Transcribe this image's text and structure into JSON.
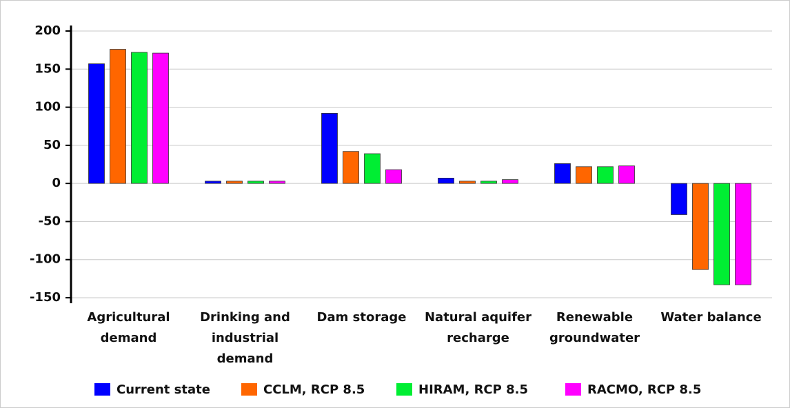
{
  "chart_data": {
    "type": "bar",
    "categories": [
      "Agricultural demand",
      "Drinking and industrial demand",
      "Dam storage",
      "Natural aquifer recharge",
      "Renewable groundwater",
      "Water balance"
    ],
    "series": [
      {
        "name": "Current state",
        "color": "#0000ff",
        "values": [
          157,
          3,
          92,
          7,
          26,
          -41
        ]
      },
      {
        "name": "CCLM, RCP 8.5",
        "color": "#ff6600",
        "values": [
          176,
          3,
          42,
          3,
          22,
          -113
        ]
      },
      {
        "name": "HIRAM, RCP 8.5",
        "color": "#00ee33",
        "values": [
          172,
          3,
          39,
          3,
          22,
          -133
        ]
      },
      {
        "name": "RACMO, RCP 8.5",
        "color": "#ff00ff",
        "values": [
          171,
          3,
          18,
          5,
          23,
          -133
        ]
      }
    ],
    "ylim": [
      -150,
      200
    ],
    "yticks": [
      -150,
      -100,
      -50,
      0,
      50,
      100,
      150,
      200
    ],
    "grid": true,
    "legend": "bottom"
  }
}
